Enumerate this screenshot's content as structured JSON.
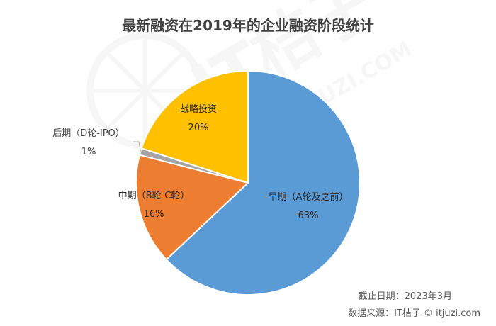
{
  "chart_data": {
    "type": "pie",
    "title": "最新融资在2019年的企业融资阶段统计",
    "slices": [
      {
        "label": "早期（A轮及之前）",
        "value": 63,
        "display": "63%",
        "color": "#5B9BD5"
      },
      {
        "label": "中期（B轮-C轮）",
        "value": 16,
        "display": "16%",
        "color": "#ED7D31"
      },
      {
        "label": "后期（D轮-IPO）",
        "value": 1,
        "display": "1%",
        "color": "#A5A5A5"
      },
      {
        "label": "战略投资",
        "value": 20,
        "display": "20%",
        "color": "#FFC000"
      }
    ],
    "legend": "none",
    "data_labels": "category and percentage"
  },
  "footer": {
    "cutoff_date": "截止日期：2023年3月",
    "data_source": "数据来源：IT桔子 © itjuzi.com"
  },
  "watermark": {
    "brand": "IT桔子",
    "url": "ITJUZI.COM"
  }
}
